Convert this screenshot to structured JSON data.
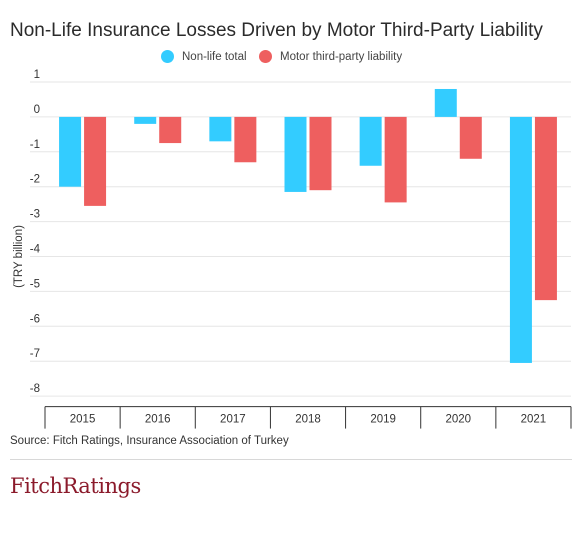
{
  "chart_data": {
    "type": "bar",
    "title": "Non-Life Insurance Losses Driven by Motor Third-Party Liability",
    "ylabel": "(TRY billion)",
    "xlabel": "",
    "categories": [
      "2015",
      "2016",
      "2017",
      "2018",
      "2019",
      "2020",
      "2021"
    ],
    "series": [
      {
        "name": "Non-life total",
        "color": "#33ccff",
        "values": [
          -2.0,
          -0.2,
          -0.7,
          -2.15,
          -1.4,
          0.8,
          -7.05
        ]
      },
      {
        "name": "Motor third-party liability",
        "color": "#ee5f5f",
        "values": [
          -2.55,
          -0.75,
          -1.3,
          -2.1,
          -2.45,
          -1.2,
          -5.25
        ]
      }
    ],
    "ylim": [
      -8.3,
      1
    ],
    "yticks": [
      1,
      0,
      -1,
      -2,
      -3,
      -4,
      -5,
      -6,
      -7,
      -8
    ],
    "grid": true,
    "legend": "top-center"
  },
  "source": "Source: Fitch Ratings, Insurance Association of Turkey",
  "logo": "FitchRatings"
}
